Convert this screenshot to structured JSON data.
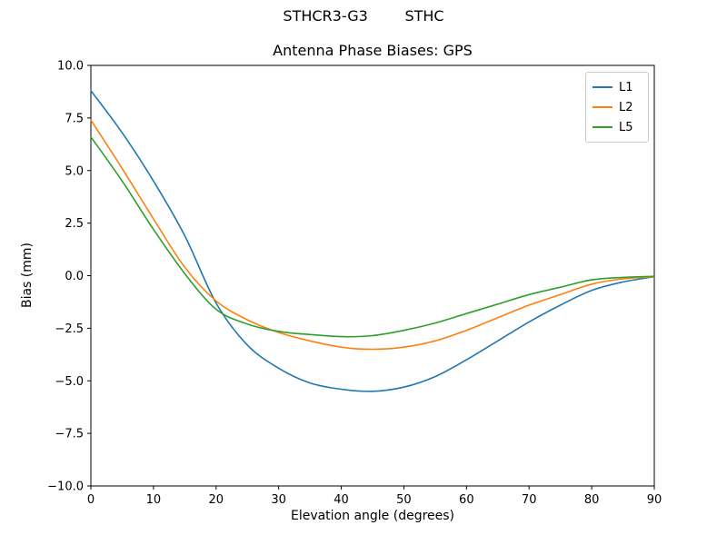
{
  "figure": {
    "suptitle": "STHCR3-G3        STHC"
  },
  "chart_data": {
    "type": "line",
    "title": "Antenna Phase Biases: GPS",
    "xlabel": "Elevation angle (degrees)",
    "ylabel": "Bias (mm)",
    "xlim": [
      0,
      90
    ],
    "ylim": [
      -10,
      10
    ],
    "xticks": [
      0,
      10,
      20,
      30,
      40,
      50,
      60,
      70,
      80,
      90
    ],
    "yticks": [
      -10,
      -7.5,
      -5,
      -2.5,
      0,
      2.5,
      5,
      7.5,
      10
    ],
    "grid": false,
    "legend_position": "upper right",
    "x": [
      0,
      5,
      10,
      15,
      20,
      25,
      30,
      35,
      40,
      45,
      50,
      55,
      60,
      65,
      70,
      75,
      80,
      85,
      90
    ],
    "series": [
      {
        "name": "L1",
        "color": "#1f77b4",
        "values": [
          8.8,
          6.8,
          4.5,
          1.9,
          -1.3,
          -3.3,
          -4.4,
          -5.1,
          -5.4,
          -5.5,
          -5.3,
          -4.8,
          -4.0,
          -3.1,
          -2.2,
          -1.4,
          -0.7,
          -0.3,
          -0.05
        ]
      },
      {
        "name": "L2",
        "color": "#ff7f0e",
        "values": [
          7.4,
          5.1,
          2.7,
          0.4,
          -1.2,
          -2.1,
          -2.7,
          -3.1,
          -3.4,
          -3.5,
          -3.4,
          -3.1,
          -2.6,
          -2.0,
          -1.4,
          -0.9,
          -0.4,
          -0.15,
          -0.05
        ]
      },
      {
        "name": "L5",
        "color": "#2ca02c",
        "values": [
          6.6,
          4.5,
          2.2,
          0.1,
          -1.6,
          -2.3,
          -2.65,
          -2.8,
          -2.9,
          -2.85,
          -2.6,
          -2.25,
          -1.8,
          -1.35,
          -0.9,
          -0.55,
          -0.2,
          -0.08,
          -0.03
        ]
      }
    ]
  }
}
